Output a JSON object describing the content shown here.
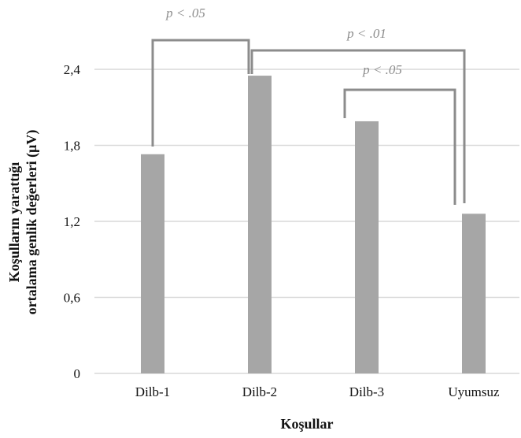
{
  "chart_data": {
    "type": "bar",
    "categories": [
      "Dilb-1",
      "Dilb-2",
      "Dilb-3",
      "Uyumsuz"
    ],
    "values": [
      1.73,
      2.35,
      1.99,
      1.26
    ],
    "xlabel": "Koşullar",
    "ylabel_lines": [
      "Koşulların yarattığı",
      "ortalama genlik değerleri (μV)"
    ],
    "ylim": [
      0,
      2.4
    ],
    "yticks": [
      "0",
      "0,6",
      "1,2",
      "1,8",
      "2,4"
    ],
    "ytick_values": [
      0,
      0.6,
      1.2,
      1.8,
      2.4
    ],
    "grid": true,
    "bar_color": "#a6a6a6",
    "grid_color": "#d9d9d9",
    "bracket_color": "#8c8c8c",
    "significance": [
      {
        "from": "Dilb-1",
        "to": "Dilb-2",
        "label": "p < .05"
      },
      {
        "from": "Dilb-2",
        "to": "Uyumsuz",
        "label": "p < .01"
      },
      {
        "from": "Dilb-3",
        "to": "Uyumsuz",
        "label": "p < .05"
      }
    ]
  }
}
